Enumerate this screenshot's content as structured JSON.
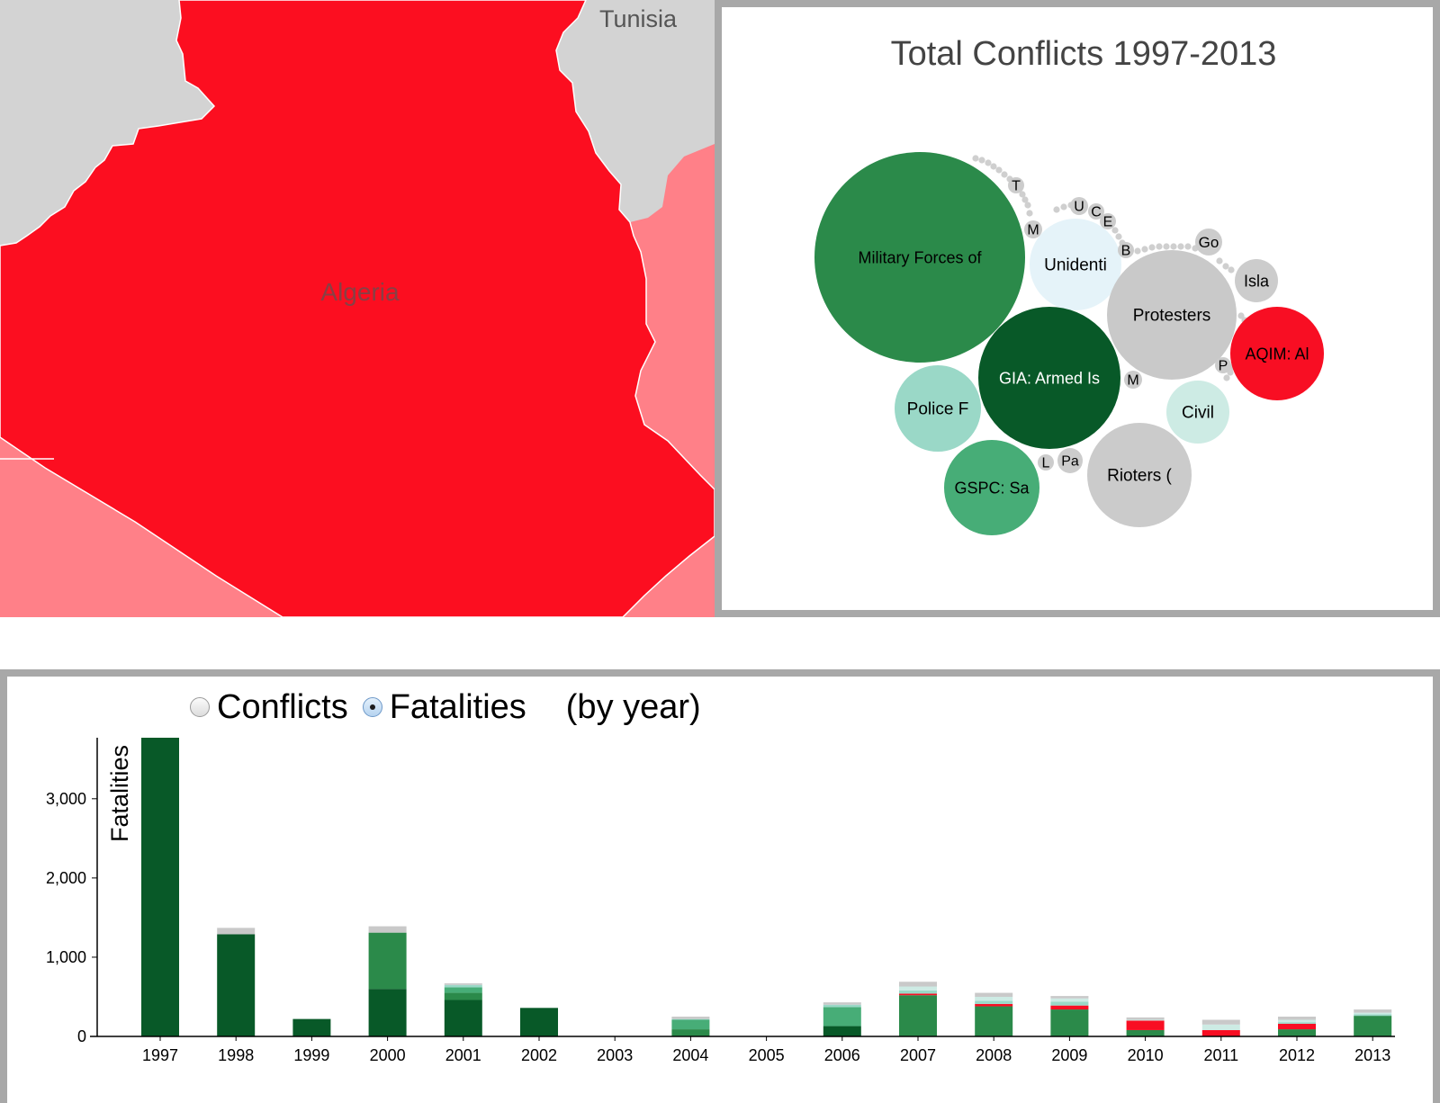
{
  "map": {
    "country_label": "Algeria",
    "neighbor_label": "Tunisia",
    "colors": {
      "selected": "#fc0e20",
      "neighbor_fill": "#ff8088",
      "other_land": "#d3d3d3",
      "border": "#ffffff"
    }
  },
  "bubble_chart": {
    "title": "Total Conflicts 1997-2013",
    "bubbles": [
      {
        "label": "Military Forces of",
        "color": "#2b8a4a"
      },
      {
        "label": "Unidenti",
        "color": "#e5f3f9"
      },
      {
        "label": "Protesters",
        "color": "#c9c9c9"
      },
      {
        "label": "GIA: Armed Is",
        "color": "#085928"
      },
      {
        "label": "AQIM: Al",
        "color": "#f80e23"
      },
      {
        "label": "Police F",
        "color": "#9ad8c7"
      },
      {
        "label": "Civil",
        "color": "#cdebe4"
      },
      {
        "label": "GSPC: Sa",
        "color": "#47ad77"
      },
      {
        "label": "Rioters (",
        "color": "#cbcbcb"
      },
      {
        "label": "Isla",
        "color": "#cccccc"
      },
      {
        "label": "Go",
        "color": "#cccccc"
      },
      {
        "label": "T",
        "color": "#cccccc"
      },
      {
        "label": "M",
        "color": "#cccccc"
      },
      {
        "label": "U",
        "color": "#cccccc"
      },
      {
        "label": "C",
        "color": "#cccccc"
      },
      {
        "label": "E",
        "color": "#cccccc"
      },
      {
        "label": "B",
        "color": "#cccccc"
      },
      {
        "label": "M",
        "color": "#cccccc"
      },
      {
        "label": "P",
        "color": "#cccccc"
      },
      {
        "label": "L",
        "color": "#cccccc"
      },
      {
        "label": "Pa",
        "color": "#cccccc"
      }
    ]
  },
  "controls": {
    "options": [
      {
        "label": "Conflicts",
        "checked": false
      },
      {
        "label": "Fatalities",
        "checked": true
      }
    ],
    "suffix": "(by year)"
  },
  "chart_data": {
    "type": "bar",
    "stacked": true,
    "ylabel": "Fatalities",
    "xlabel": "",
    "ylim": [
      0,
      3770
    ],
    "yticks": [
      0,
      1000,
      2000,
      3000
    ],
    "ytick_labels": [
      "0",
      "1,000",
      "2,000",
      "3,000"
    ],
    "categories": [
      "1997",
      "1998",
      "1999",
      "2000",
      "2001",
      "2002",
      "2003",
      "2004",
      "2005",
      "2006",
      "2007",
      "2008",
      "2009",
      "2010",
      "2011",
      "2012",
      "2013"
    ],
    "series": [
      {
        "color": "#085928",
        "values": [
          3770,
          1290,
          220,
          600,
          460,
          360,
          0,
          0,
          0,
          130,
          0,
          0,
          0,
          0,
          0,
          0,
          0
        ]
      },
      {
        "color": "#2b8a4a",
        "values": [
          0,
          0,
          0,
          710,
          90,
          0,
          0,
          90,
          0,
          0,
          520,
          380,
          340,
          80,
          0,
          90,
          260
        ]
      },
      {
        "color": "#47ad77",
        "values": [
          0,
          0,
          0,
          0,
          70,
          0,
          0,
          120,
          0,
          240,
          0,
          0,
          0,
          0,
          0,
          0,
          0
        ]
      },
      {
        "color": "#f80e23",
        "values": [
          0,
          0,
          0,
          0,
          0,
          0,
          0,
          0,
          0,
          0,
          20,
          30,
          50,
          120,
          80,
          70,
          0
        ]
      },
      {
        "color": "#9ad8c7",
        "values": [
          0,
          0,
          0,
          0,
          30,
          0,
          0,
          10,
          0,
          30,
          40,
          40,
          50,
          0,
          0,
          20,
          20
        ]
      },
      {
        "color": "#cdebe4",
        "values": [
          0,
          0,
          0,
          0,
          0,
          0,
          0,
          0,
          0,
          0,
          50,
          50,
          40,
          10,
          70,
          30,
          20
        ]
      },
      {
        "color": "#c9c9c9",
        "values": [
          0,
          80,
          0,
          80,
          20,
          0,
          0,
          30,
          0,
          30,
          60,
          50,
          30,
          30,
          60,
          40,
          40
        ]
      }
    ]
  }
}
